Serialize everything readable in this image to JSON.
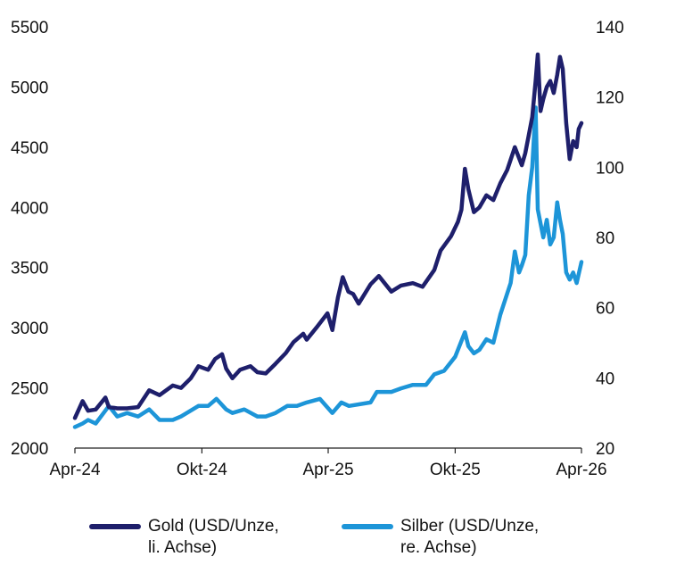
{
  "chart_data": {
    "type": "line",
    "title": "",
    "x_ticks": [
      "Apr-24",
      "Okt-24",
      "Apr-25",
      "Okt-25",
      "Apr-26"
    ],
    "y_left": {
      "ticks": [
        2000,
        2500,
        3000,
        3500,
        4000,
        4500,
        5000,
        5500
      ],
      "ylim": [
        2000,
        5500
      ]
    },
    "y_right": {
      "ticks": [
        20,
        40,
        60,
        80,
        100,
        120,
        140
      ],
      "ylim": [
        20,
        140
      ]
    },
    "grid": false,
    "legend_position": "bottom",
    "series": [
      {
        "name": "Gold (USD/Unze,\nli. Achse)",
        "axis": "left",
        "color": "#1e1f6b",
        "x": [
          "2024-04-01",
          "2024-04-12",
          "2024-04-20",
          "2024-05-01",
          "2024-05-15",
          "2024-05-20",
          "2024-06-01",
          "2024-06-15",
          "2024-07-01",
          "2024-07-17",
          "2024-08-01",
          "2024-08-20",
          "2024-09-01",
          "2024-09-15",
          "2024-09-26",
          "2024-10-10",
          "2024-10-20",
          "2024-10-30",
          "2024-11-05",
          "2024-11-14",
          "2024-11-25",
          "2024-12-10",
          "2024-12-20",
          "2025-01-01",
          "2025-01-15",
          "2025-01-30",
          "2025-02-10",
          "2025-02-24",
          "2025-03-01",
          "2025-03-15",
          "2025-03-31",
          "2025-04-07",
          "2025-04-15",
          "2025-04-22",
          "2025-04-30",
          "2025-05-07",
          "2025-05-15",
          "2025-06-01",
          "2025-06-13",
          "2025-07-01",
          "2025-07-15",
          "2025-08-01",
          "2025-08-15",
          "2025-09-01",
          "2025-09-10",
          "2025-09-25",
          "2025-10-05",
          "2025-10-10",
          "2025-10-15",
          "2025-10-20",
          "2025-10-28",
          "2025-11-05",
          "2025-11-15",
          "2025-11-25",
          "2025-12-05",
          "2025-12-15",
          "2025-12-26",
          "2026-01-05",
          "2026-01-10",
          "2026-01-15",
          "2026-01-20",
          "2026-01-25",
          "2026-01-28",
          "2026-02-01",
          "2026-02-05",
          "2026-02-10",
          "2026-02-15",
          "2026-02-20",
          "2026-02-25",
          "2026-03-01",
          "2026-03-05",
          "2026-03-10",
          "2026-03-15",
          "2026-03-20",
          "2026-03-25",
          "2026-03-28",
          "2026-04-01"
        ],
        "values": [
          2250,
          2390,
          2310,
          2320,
          2420,
          2340,
          2330,
          2330,
          2340,
          2480,
          2440,
          2520,
          2500,
          2580,
          2680,
          2650,
          2740,
          2780,
          2660,
          2580,
          2650,
          2680,
          2630,
          2620,
          2700,
          2790,
          2880,
          2950,
          2900,
          3000,
          3120,
          2980,
          3250,
          3420,
          3300,
          3280,
          3200,
          3360,
          3430,
          3300,
          3350,
          3370,
          3340,
          3480,
          3640,
          3760,
          3880,
          3980,
          4320,
          4150,
          3960,
          4000,
          4100,
          4060,
          4200,
          4310,
          4500,
          4350,
          4450,
          4600,
          4750,
          5050,
          5270,
          4800,
          4900,
          5000,
          5050,
          4950,
          5100,
          5250,
          5150,
          4700,
          4400,
          4550,
          4500,
          4650,
          4700
        ]
      },
      {
        "name": "Silber (USD/Unze,\nre. Achse)",
        "axis": "right",
        "color": "#1d95d8",
        "x": [
          "2024-04-01",
          "2024-04-12",
          "2024-04-20",
          "2024-05-01",
          "2024-05-20",
          "2024-06-01",
          "2024-06-15",
          "2024-07-01",
          "2024-07-17",
          "2024-08-01",
          "2024-08-20",
          "2024-09-01",
          "2024-09-26",
          "2024-10-10",
          "2024-10-22",
          "2024-11-05",
          "2024-11-14",
          "2024-12-01",
          "2024-12-20",
          "2025-01-01",
          "2025-01-15",
          "2025-02-01",
          "2025-02-15",
          "2025-03-01",
          "2025-03-20",
          "2025-04-07",
          "2025-04-20",
          "2025-05-01",
          "2025-06-01",
          "2025-06-10",
          "2025-07-01",
          "2025-07-15",
          "2025-08-01",
          "2025-08-20",
          "2025-09-01",
          "2025-09-15",
          "2025-10-01",
          "2025-10-15",
          "2025-10-20",
          "2025-10-28",
          "2025-11-05",
          "2025-11-15",
          "2025-11-25",
          "2025-12-05",
          "2025-12-15",
          "2025-12-20",
          "2025-12-26",
          "2026-01-01",
          "2026-01-05",
          "2026-01-10",
          "2026-01-15",
          "2026-01-20",
          "2026-01-25",
          "2026-01-28",
          "2026-02-01",
          "2026-02-05",
          "2026-02-10",
          "2026-02-15",
          "2026-02-20",
          "2026-02-25",
          "2026-03-01",
          "2026-03-05",
          "2026-03-10",
          "2026-03-15",
          "2026-03-20",
          "2026-03-25",
          "2026-04-01"
        ],
        "values": [
          26,
          27,
          28,
          27,
          32,
          29,
          30,
          29,
          31,
          28,
          28,
          29,
          32,
          32,
          34,
          31,
          30,
          31,
          29,
          29,
          30,
          32,
          32,
          33,
          34,
          30,
          33,
          32,
          33,
          36,
          36,
          37,
          38,
          38,
          41,
          42,
          46,
          53,
          49,
          47,
          48,
          51,
          50,
          58,
          64,
          67,
          76,
          70,
          72,
          75,
          92,
          100,
          117,
          88,
          84,
          80,
          85,
          78,
          80,
          90,
          85,
          81,
          70,
          68,
          70,
          67,
          73
        ]
      }
    ]
  }
}
